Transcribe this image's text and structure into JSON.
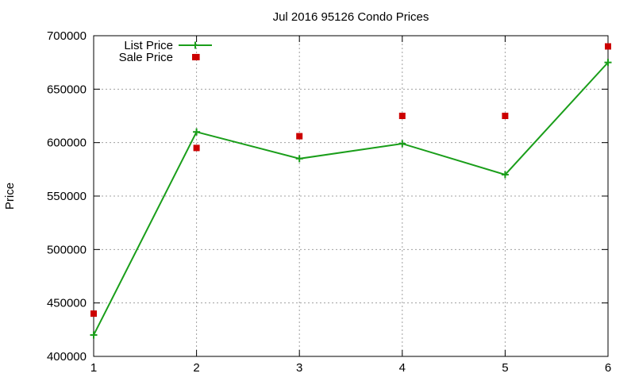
{
  "chart_data": {
    "type": "line",
    "title": "Jul 2016 95126 Condo Prices",
    "xlabel": "",
    "ylabel": "Price",
    "x": [
      1,
      2,
      3,
      4,
      5,
      6
    ],
    "xlim": [
      1,
      6
    ],
    "ylim": [
      400000,
      700000
    ],
    "xticks": [
      "1",
      "2",
      "3",
      "4",
      "5",
      "6"
    ],
    "yticks": [
      "400000",
      "450000",
      "500000",
      "550000",
      "600000",
      "650000",
      "700000"
    ],
    "grid": true,
    "legend_position": "top-left",
    "series": [
      {
        "name": "List Price",
        "style": "line-with-plus-markers",
        "color": "#1a9e1a",
        "values": [
          420000,
          610000,
          585000,
          599000,
          570000,
          675000
        ]
      },
      {
        "name": "Sale Price",
        "style": "square-markers",
        "color": "#cc0000",
        "values": [
          440000,
          595000,
          606000,
          625000,
          625000,
          690000
        ]
      }
    ],
    "extra_points": [
      {
        "series": "Sale Price",
        "x": 2,
        "y": 680000
      }
    ]
  }
}
